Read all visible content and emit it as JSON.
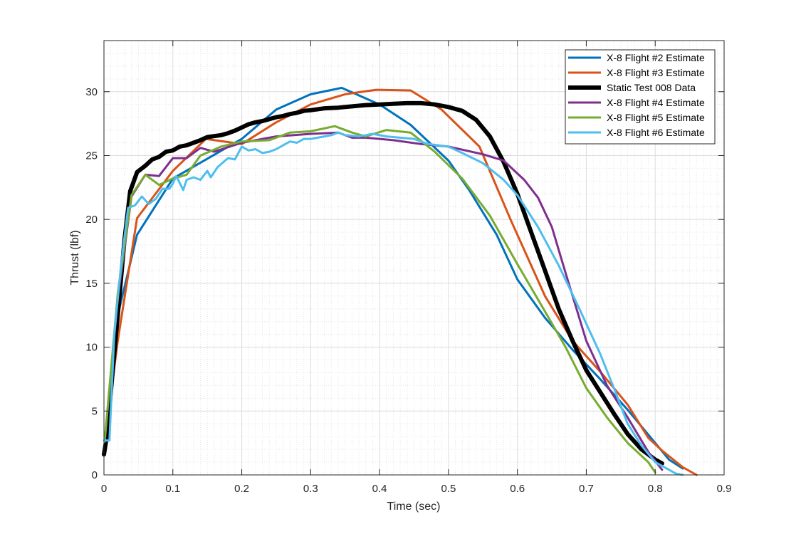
{
  "chart_data": {
    "type": "line",
    "title": "",
    "xlabel": "Time (sec)",
    "ylabel": "Thrust (lbf)",
    "xlim": [
      0,
      0.9
    ],
    "ylim": [
      0,
      34
    ],
    "xticks": [
      0,
      0.1,
      0.2,
      0.3,
      0.4,
      0.5,
      0.6,
      0.7,
      0.8,
      0.9
    ],
    "yticks": [
      0,
      5,
      10,
      15,
      20,
      25,
      30
    ],
    "xtick_labels": [
      "0",
      "0.1",
      "0.2",
      "0.3",
      "0.4",
      "0.5",
      "0.6",
      "0.7",
      "0.8",
      "0.9"
    ],
    "ytick_labels": [
      "0",
      "5",
      "10",
      "15",
      "20",
      "25",
      "30"
    ],
    "grid": true,
    "minor_grid": true,
    "legend_position": "top-right",
    "series": [
      {
        "name": "X-8 Flight #2 Estimate",
        "color": "#0072BD",
        "width": 3,
        "points": [
          [
            0.001,
            2.6
          ],
          [
            0.02,
            12.5
          ],
          [
            0.048,
            18.8
          ],
          [
            0.1,
            23.2
          ],
          [
            0.2,
            26.3
          ],
          [
            0.25,
            28.6
          ],
          [
            0.3,
            29.8
          ],
          [
            0.345,
            30.3
          ],
          [
            0.4,
            29.0
          ],
          [
            0.445,
            27.4
          ],
          [
            0.5,
            24.6
          ],
          [
            0.53,
            22.3
          ],
          [
            0.57,
            18.8
          ],
          [
            0.6,
            15.3
          ],
          [
            0.64,
            12.3
          ],
          [
            0.68,
            9.8
          ],
          [
            0.72,
            7.5
          ],
          [
            0.76,
            5.1
          ],
          [
            0.8,
            2.5
          ],
          [
            0.82,
            1.2
          ],
          [
            0.84,
            0.5
          ]
        ]
      },
      {
        "name": "X-8 Flight #3 Estimate",
        "color": "#D95319",
        "width": 3,
        "points": [
          [
            0.001,
            2.6
          ],
          [
            0.02,
            10.5
          ],
          [
            0.048,
            20.1
          ],
          [
            0.1,
            23.8
          ],
          [
            0.148,
            26.3
          ],
          [
            0.2,
            25.9
          ],
          [
            0.25,
            27.6
          ],
          [
            0.3,
            29.0
          ],
          [
            0.35,
            29.8
          ],
          [
            0.395,
            30.15
          ],
          [
            0.445,
            30.1
          ],
          [
            0.49,
            28.6
          ],
          [
            0.545,
            25.7
          ],
          [
            0.59,
            20.0
          ],
          [
            0.64,
            14.0
          ],
          [
            0.68,
            10.5
          ],
          [
            0.72,
            8.1
          ],
          [
            0.76,
            5.5
          ],
          [
            0.79,
            2.9
          ],
          [
            0.81,
            1.9
          ],
          [
            0.84,
            0.6
          ],
          [
            0.86,
            0.0
          ]
        ]
      },
      {
        "name": "Static Test 008 Data",
        "color": "#000000",
        "width": 6,
        "points": [
          [
            0.0,
            1.6
          ],
          [
            0.005,
            3.3
          ],
          [
            0.01,
            6.5
          ],
          [
            0.015,
            9.5
          ],
          [
            0.02,
            12.5
          ],
          [
            0.025,
            15.5
          ],
          [
            0.03,
            18.5
          ],
          [
            0.038,
            22.2
          ],
          [
            0.048,
            23.7
          ],
          [
            0.06,
            24.2
          ],
          [
            0.07,
            24.7
          ],
          [
            0.08,
            24.9
          ],
          [
            0.09,
            25.3
          ],
          [
            0.1,
            25.4
          ],
          [
            0.11,
            25.7
          ],
          [
            0.12,
            25.8
          ],
          [
            0.13,
            26.0
          ],
          [
            0.14,
            26.2
          ],
          [
            0.15,
            26.45
          ],
          [
            0.17,
            26.6
          ],
          [
            0.18,
            26.75
          ],
          [
            0.19,
            26.95
          ],
          [
            0.2,
            27.2
          ],
          [
            0.21,
            27.45
          ],
          [
            0.22,
            27.6
          ],
          [
            0.23,
            27.7
          ],
          [
            0.24,
            27.85
          ],
          [
            0.25,
            28.0
          ],
          [
            0.26,
            28.1
          ],
          [
            0.27,
            28.25
          ],
          [
            0.28,
            28.35
          ],
          [
            0.29,
            28.5
          ],
          [
            0.3,
            28.55
          ],
          [
            0.32,
            28.7
          ],
          [
            0.34,
            28.75
          ],
          [
            0.36,
            28.85
          ],
          [
            0.38,
            28.95
          ],
          [
            0.4,
            29.0
          ],
          [
            0.42,
            29.05
          ],
          [
            0.44,
            29.1
          ],
          [
            0.46,
            29.1
          ],
          [
            0.48,
            29.0
          ],
          [
            0.5,
            28.8
          ],
          [
            0.52,
            28.5
          ],
          [
            0.54,
            27.8
          ],
          [
            0.56,
            26.5
          ],
          [
            0.58,
            24.5
          ],
          [
            0.6,
            22.0
          ],
          [
            0.62,
            19.0
          ],
          [
            0.64,
            16.0
          ],
          [
            0.66,
            13.0
          ],
          [
            0.68,
            10.5
          ],
          [
            0.7,
            8.2
          ],
          [
            0.72,
            6.5
          ],
          [
            0.74,
            4.8
          ],
          [
            0.76,
            3.2
          ],
          [
            0.78,
            2.0
          ],
          [
            0.8,
            1.2
          ],
          [
            0.81,
            0.9
          ]
        ]
      },
      {
        "name": "X-8 Flight #4 Estimate",
        "color": "#7E2F8E",
        "width": 3,
        "points": [
          [
            0.001,
            2.6
          ],
          [
            0.02,
            13.8
          ],
          [
            0.04,
            21.8
          ],
          [
            0.06,
            23.5
          ],
          [
            0.08,
            23.4
          ],
          [
            0.1,
            24.8
          ],
          [
            0.12,
            24.8
          ],
          [
            0.14,
            25.6
          ],
          [
            0.16,
            25.3
          ],
          [
            0.2,
            26.0
          ],
          [
            0.25,
            26.5
          ],
          [
            0.3,
            26.7
          ],
          [
            0.34,
            26.8
          ],
          [
            0.36,
            26.4
          ],
          [
            0.38,
            26.4
          ],
          [
            0.42,
            26.2
          ],
          [
            0.46,
            25.9
          ],
          [
            0.5,
            25.7
          ],
          [
            0.55,
            25.1
          ],
          [
            0.58,
            24.6
          ],
          [
            0.61,
            23.1
          ],
          [
            0.63,
            21.7
          ],
          [
            0.65,
            19.4
          ],
          [
            0.67,
            15.8
          ],
          [
            0.7,
            10.5
          ],
          [
            0.73,
            7.0
          ],
          [
            0.76,
            4.5
          ],
          [
            0.79,
            1.8
          ],
          [
            0.81,
            0.4
          ]
        ]
      },
      {
        "name": "X-8 Flight #5 Estimate",
        "color": "#77AC30",
        "width": 3,
        "points": [
          [
            0.001,
            2.6
          ],
          [
            0.02,
            14.2
          ],
          [
            0.04,
            21.9
          ],
          [
            0.06,
            23.5
          ],
          [
            0.08,
            22.7
          ],
          [
            0.1,
            23.2
          ],
          [
            0.12,
            23.5
          ],
          [
            0.14,
            25.0
          ],
          [
            0.17,
            25.7
          ],
          [
            0.2,
            26.1
          ],
          [
            0.24,
            26.2
          ],
          [
            0.27,
            26.8
          ],
          [
            0.3,
            26.9
          ],
          [
            0.335,
            27.3
          ],
          [
            0.36,
            26.8
          ],
          [
            0.38,
            26.5
          ],
          [
            0.41,
            27.0
          ],
          [
            0.445,
            26.8
          ],
          [
            0.48,
            25.3
          ],
          [
            0.52,
            23.2
          ],
          [
            0.56,
            20.3
          ],
          [
            0.6,
            16.5
          ],
          [
            0.64,
            12.8
          ],
          [
            0.67,
            10.0
          ],
          [
            0.7,
            6.8
          ],
          [
            0.73,
            4.5
          ],
          [
            0.76,
            2.5
          ],
          [
            0.79,
            1.0
          ],
          [
            0.8,
            0.2
          ]
        ]
      },
      {
        "name": "X-8 Flight #6 Estimate",
        "color": "#4DBEEE",
        "width": 3,
        "points": [
          [
            0.0,
            2.7
          ],
          [
            0.008,
            2.7
          ],
          [
            0.015,
            11.0
          ],
          [
            0.025,
            16.5
          ],
          [
            0.035,
            20.9
          ],
          [
            0.045,
            21.1
          ],
          [
            0.055,
            21.8
          ],
          [
            0.065,
            21.2
          ],
          [
            0.075,
            21.6
          ],
          [
            0.085,
            22.4
          ],
          [
            0.095,
            22.4
          ],
          [
            0.1,
            22.8
          ],
          [
            0.105,
            23.4
          ],
          [
            0.115,
            22.3
          ],
          [
            0.12,
            23.1
          ],
          [
            0.13,
            23.3
          ],
          [
            0.14,
            23.1
          ],
          [
            0.15,
            23.8
          ],
          [
            0.155,
            23.3
          ],
          [
            0.165,
            24.1
          ],
          [
            0.18,
            24.8
          ],
          [
            0.19,
            24.7
          ],
          [
            0.2,
            25.7
          ],
          [
            0.21,
            25.4
          ],
          [
            0.22,
            25.5
          ],
          [
            0.23,
            25.2
          ],
          [
            0.24,
            25.3
          ],
          [
            0.25,
            25.5
          ],
          [
            0.26,
            25.8
          ],
          [
            0.27,
            26.1
          ],
          [
            0.28,
            26.0
          ],
          [
            0.29,
            26.3
          ],
          [
            0.3,
            26.3
          ],
          [
            0.31,
            26.4
          ],
          [
            0.32,
            26.5
          ],
          [
            0.33,
            26.6
          ],
          [
            0.34,
            26.8
          ],
          [
            0.35,
            26.6
          ],
          [
            0.37,
            26.5
          ],
          [
            0.39,
            26.7
          ],
          [
            0.41,
            26.5
          ],
          [
            0.43,
            26.4
          ],
          [
            0.45,
            26.3
          ],
          [
            0.47,
            25.9
          ],
          [
            0.5,
            25.7
          ],
          [
            0.52,
            25.2
          ],
          [
            0.55,
            24.4
          ],
          [
            0.58,
            23.1
          ],
          [
            0.6,
            21.9
          ],
          [
            0.63,
            19.4
          ],
          [
            0.66,
            16.4
          ],
          [
            0.69,
            13.0
          ],
          [
            0.72,
            9.5
          ],
          [
            0.74,
            6.8
          ],
          [
            0.76,
            4.0
          ],
          [
            0.78,
            2.3
          ],
          [
            0.8,
            1.0
          ],
          [
            0.83,
            0.1
          ],
          [
            0.84,
            0.0
          ]
        ]
      }
    ]
  }
}
